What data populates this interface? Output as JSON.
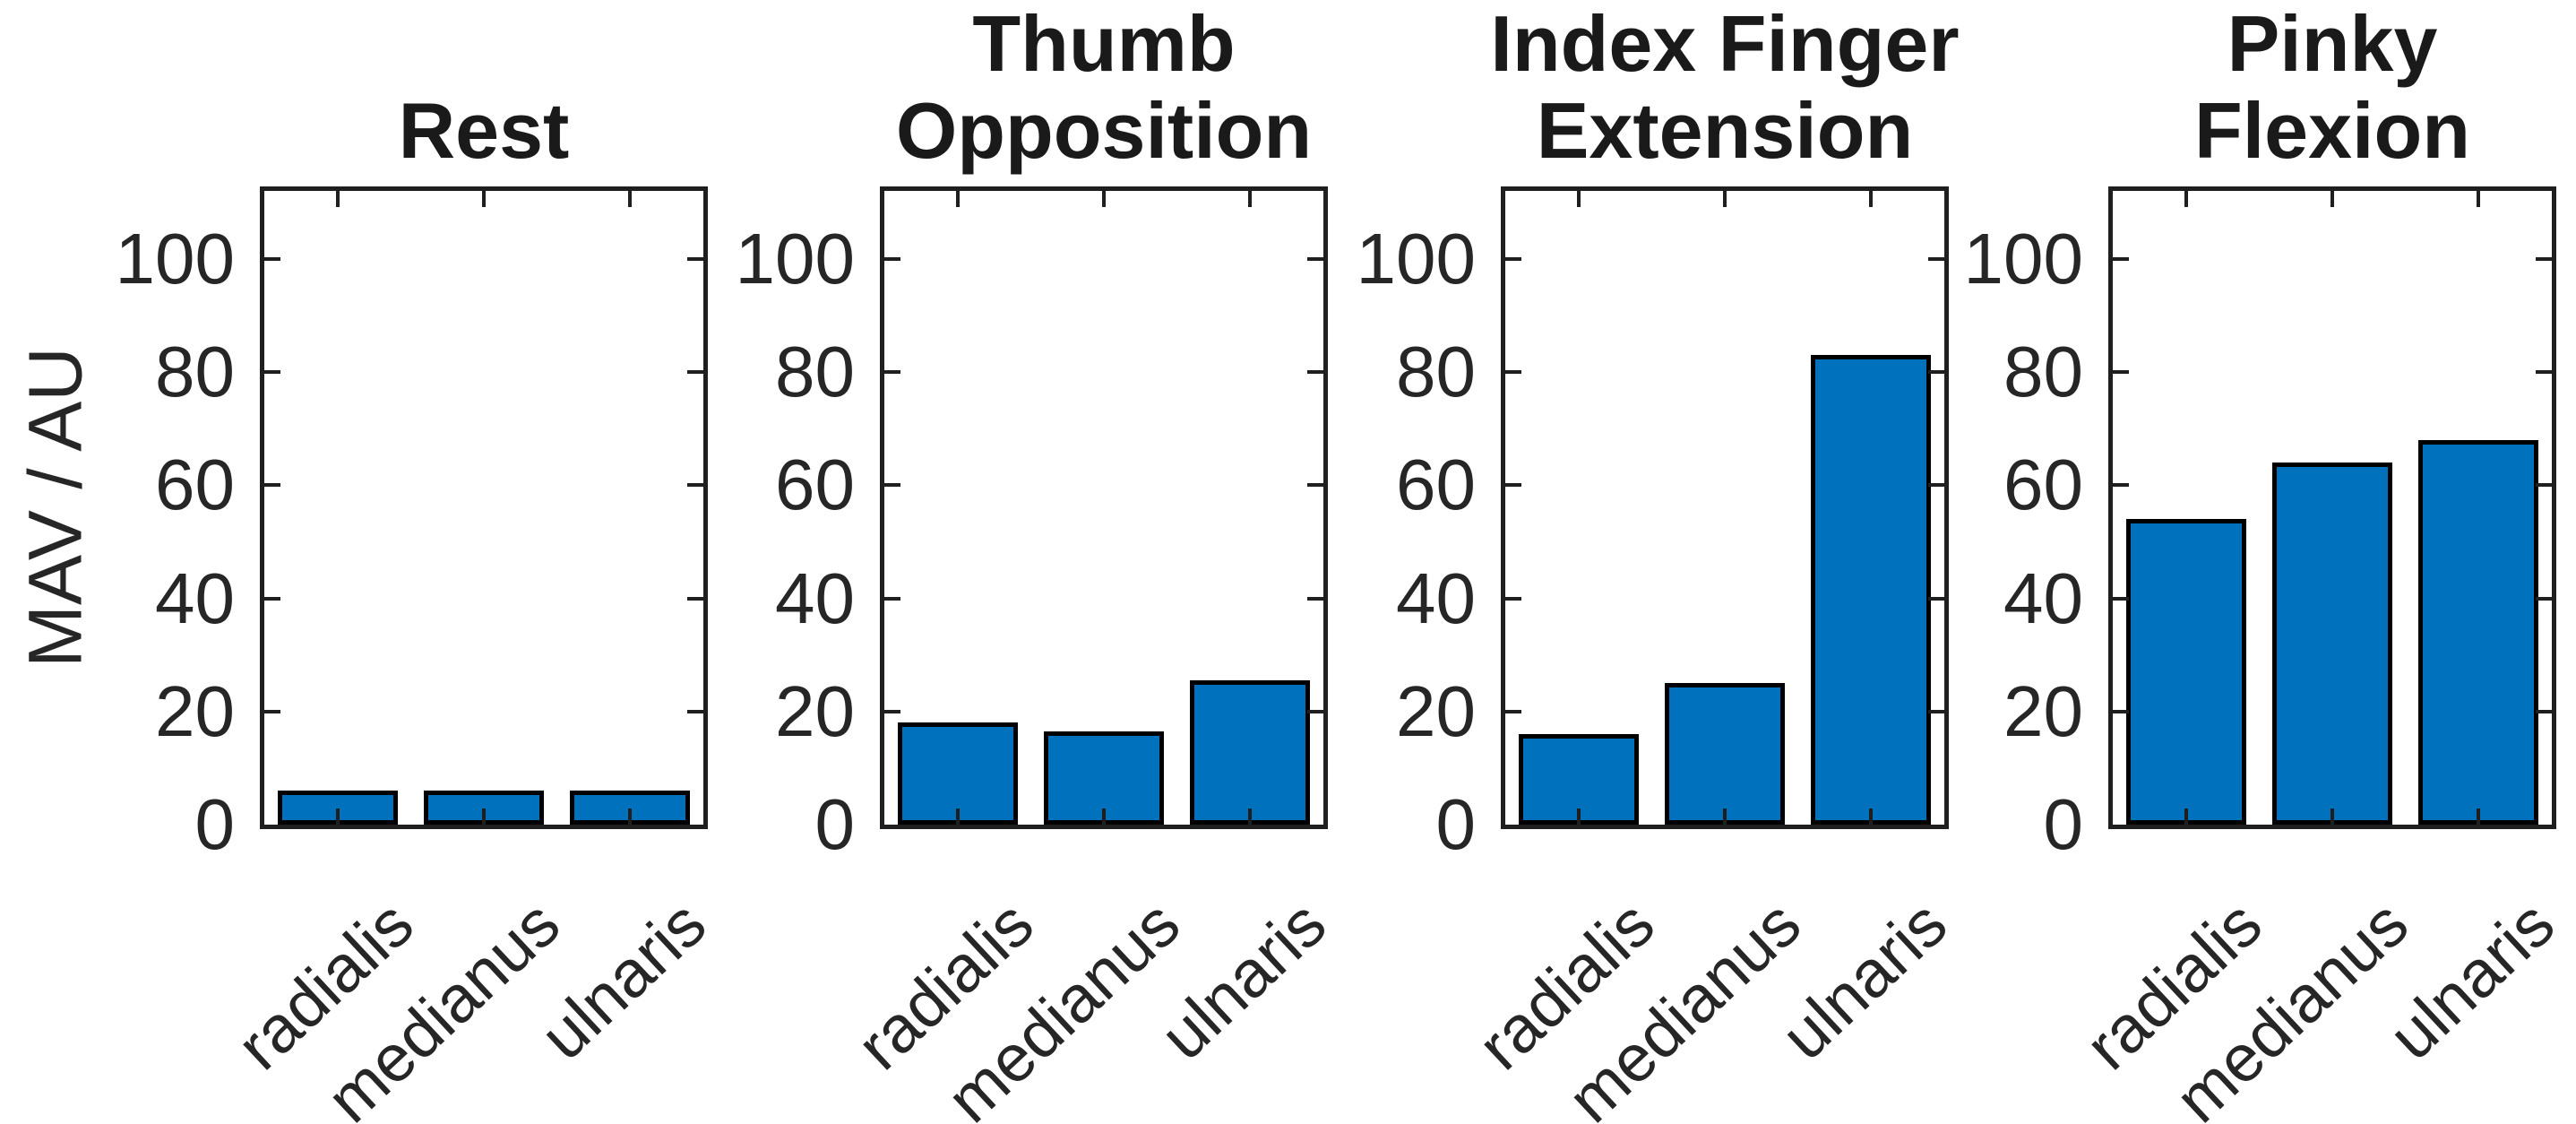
{
  "chart_data": {
    "type": "bar",
    "ylabel": "MAV / AU",
    "categories": [
      "radialis",
      "medianus",
      "ulnaris"
    ],
    "yticks": [
      0,
      20,
      40,
      60,
      80,
      100
    ],
    "ylim": [
      0,
      112
    ],
    "grid": false,
    "legend": "none",
    "bar_color": "#0072BD",
    "bar_edge_color": "#000000",
    "axis_color": "#1f1f1f",
    "subplots": [
      {
        "title_lines": [
          "Rest"
        ],
        "values": [
          6,
          6,
          6
        ]
      },
      {
        "title_lines": [
          "Thumb",
          "Opposition"
        ],
        "values": [
          18,
          16.5,
          25.5
        ]
      },
      {
        "title_lines": [
          "Index Finger",
          "Extension"
        ],
        "values": [
          16,
          25,
          83
        ]
      },
      {
        "title_lines": [
          "Pinky",
          "Flexion"
        ],
        "values": [
          54,
          64,
          68
        ]
      }
    ]
  }
}
